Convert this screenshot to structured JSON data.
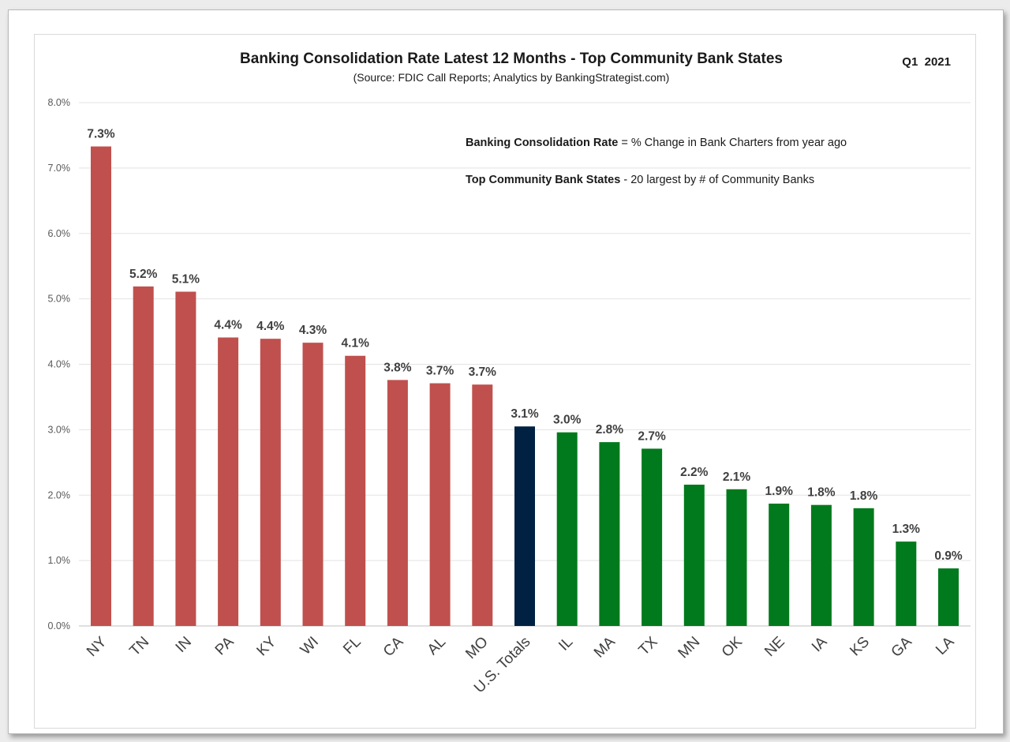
{
  "chart_data": {
    "type": "bar",
    "title": "Banking Consolidation Rate Latest 12 Months - Top Community Bank States",
    "subtitle": "(Source: FDIC Call Reports; Analytics by BankingStrategist.com)",
    "period": "Q1  2021",
    "notes": [
      {
        "bold": "Banking Consolidation Rate",
        "text": " = % Change in Bank Charters from year ago"
      },
      {
        "bold": "Top Community Bank States",
        "text": " - 20 largest by # of Community Banks"
      }
    ],
    "xlabel": "",
    "ylabel": "",
    "ylim": [
      0,
      8
    ],
    "yticks": [
      "0.0%",
      "1.0%",
      "2.0%",
      "3.0%",
      "4.0%",
      "5.0%",
      "6.0%",
      "7.0%",
      "8.0%"
    ],
    "grid": true,
    "legend": "none",
    "categories": [
      "NY",
      "TN",
      "IN",
      "PA",
      "KY",
      "WI",
      "FL",
      "CA",
      "AL",
      "MO",
      "U.S. Totals",
      "IL",
      "MA",
      "TX",
      "MN",
      "OK",
      "NE",
      "IA",
      "KS",
      "GA",
      "LA"
    ],
    "values": [
      7.33,
      5.19,
      5.11,
      4.41,
      4.39,
      4.33,
      4.13,
      3.76,
      3.71,
      3.69,
      3.05,
      2.96,
      2.81,
      2.71,
      2.16,
      2.09,
      1.87,
      1.85,
      1.8,
      1.29,
      0.88
    ],
    "data_labels": [
      "7.3%",
      "5.2%",
      "5.1%",
      "4.4%",
      "4.4%",
      "4.3%",
      "4.1%",
      "3.8%",
      "3.7%",
      "3.7%",
      "3.1%",
      "3.0%",
      "2.8%",
      "2.7%",
      "2.2%",
      "2.1%",
      "1.9%",
      "1.8%",
      "1.8%",
      "1.3%",
      "0.9%"
    ],
    "bar_colors": [
      "#c0504d",
      "#c0504d",
      "#c0504d",
      "#c0504d",
      "#c0504d",
      "#c0504d",
      "#c0504d",
      "#c0504d",
      "#c0504d",
      "#c0504d",
      "#002142",
      "#007a1c",
      "#007a1c",
      "#007a1c",
      "#007a1c",
      "#007a1c",
      "#007a1c",
      "#007a1c",
      "#007a1c",
      "#007a1c",
      "#007a1c"
    ]
  }
}
